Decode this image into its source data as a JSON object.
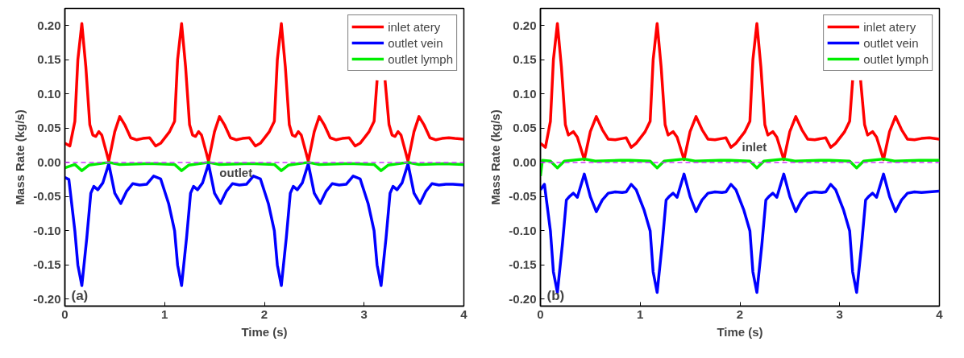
{
  "chart_data": [
    {
      "type": "line",
      "xlabel": "Time (s)",
      "ylabel": "Mass Rate (kg/s)",
      "xlim": [
        0,
        4
      ],
      "ylim": [
        -0.21,
        0.225
      ],
      "xticks": [
        0,
        1,
        2,
        3,
        4
      ],
      "yticks": [
        {
          "value": -0.2,
          "label": "-0.20"
        },
        {
          "value": -0.15,
          "label": "-0.15"
        },
        {
          "value": -0.1,
          "label": "-0.10"
        },
        {
          "value": -0.05,
          "label": "-0.05"
        },
        {
          "value": 0,
          "label": "0.00"
        },
        {
          "value": 0.05,
          "label": "0.05"
        },
        {
          "value": 0.1,
          "label": "0.10"
        },
        {
          "value": 0.15,
          "label": "0.15"
        },
        {
          "value": 0.2,
          "label": "0.20"
        }
      ],
      "legend": "top right",
      "line_style": "solid",
      "marker": "none",
      "grid": false,
      "ref_lines": [
        {
          "axis": "y",
          "value": 0,
          "color": "#cc33ff",
          "line_style": "dashed"
        }
      ],
      "annotations": [
        "(a)",
        {
          "text": "outlet",
          "x": 1.55,
          "y": -0.005
        }
      ],
      "series": [
        {
          "name": "inlet atery",
          "color": "#ff0000",
          "x": [
            0,
            0.05,
            0.1,
            0.13,
            0.17,
            0.21,
            0.25,
            0.28,
            0.31,
            0.34,
            0.37,
            0.44,
            0.5,
            0.55,
            0.6,
            0.66,
            0.72,
            0.78,
            0.85,
            0.91,
            0.96,
            1.05,
            1.1,
            1.13,
            1.17,
            1.21,
            1.25,
            1.28,
            1.31,
            1.34,
            1.37,
            1.44,
            1.5,
            1.55,
            1.6,
            1.66,
            1.72,
            1.78,
            1.85,
            1.91,
            1.96,
            2.05,
            2.1,
            2.13,
            2.17,
            2.21,
            2.25,
            2.28,
            2.31,
            2.34,
            2.37,
            2.44,
            2.5,
            2.55,
            2.6,
            2.66,
            2.72,
            2.78,
            2.85,
            2.91,
            2.96,
            3.05,
            3.1,
            3.13,
            3.17,
            3.21,
            3.25,
            3.28,
            3.31,
            3.34,
            3.37,
            3.44,
            3.5,
            3.55,
            3.6,
            3.66,
            3.72,
            3.78,
            3.85,
            3.91,
            4.0
          ],
          "values": [
            0.028,
            0.024,
            0.06,
            0.15,
            0.203,
            0.14,
            0.055,
            0.04,
            0.038,
            0.045,
            0.04,
            0.002,
            0.045,
            0.067,
            0.055,
            0.036,
            0.033,
            0.035,
            0.036,
            0.024,
            0.028,
            0.045,
            0.06,
            0.15,
            0.203,
            0.14,
            0.055,
            0.04,
            0.038,
            0.045,
            0.04,
            0.002,
            0.045,
            0.067,
            0.055,
            0.036,
            0.033,
            0.035,
            0.036,
            0.024,
            0.028,
            0.045,
            0.06,
            0.15,
            0.203,
            0.14,
            0.055,
            0.04,
            0.038,
            0.045,
            0.04,
            0.002,
            0.045,
            0.067,
            0.055,
            0.036,
            0.033,
            0.035,
            0.036,
            0.024,
            0.028,
            0.045,
            0.06,
            0.12,
            null,
            0.12,
            0.055,
            0.04,
            0.038,
            0.045,
            0.04,
            0.002,
            0.045,
            0.067,
            0.055,
            0.036,
            0.033,
            0.035,
            0.036,
            0.035,
            0.034
          ]
        },
        {
          "name": "outlet vein",
          "color": "#0000ff",
          "x": [
            0,
            0.04,
            0.1,
            0.13,
            0.17,
            0.22,
            0.26,
            0.29,
            0.33,
            0.38,
            0.44,
            0.5,
            0.56,
            0.62,
            0.68,
            0.75,
            0.82,
            0.89,
            0.96,
            1.04,
            1.1,
            1.13,
            1.17,
            1.22,
            1.26,
            1.29,
            1.33,
            1.38,
            1.44,
            1.5,
            1.56,
            1.62,
            1.68,
            1.75,
            1.82,
            1.89,
            1.96,
            2.04,
            2.1,
            2.13,
            2.17,
            2.22,
            2.26,
            2.29,
            2.33,
            2.38,
            2.44,
            2.5,
            2.56,
            2.62,
            2.68,
            2.75,
            2.82,
            2.89,
            2.96,
            3.04,
            3.1,
            3.13,
            3.17,
            3.22,
            3.26,
            3.29,
            3.33,
            3.38,
            3.44,
            3.5,
            3.56,
            3.62,
            3.68,
            3.75,
            3.82,
            3.89,
            4.0
          ],
          "values": [
            -0.022,
            -0.025,
            -0.1,
            -0.15,
            -0.18,
            -0.11,
            -0.045,
            -0.035,
            -0.04,
            -0.03,
            -0.002,
            -0.045,
            -0.06,
            -0.042,
            -0.031,
            -0.033,
            -0.032,
            -0.02,
            -0.024,
            -0.06,
            -0.1,
            -0.15,
            -0.18,
            -0.11,
            -0.045,
            -0.035,
            -0.04,
            -0.03,
            -0.002,
            -0.045,
            -0.06,
            -0.042,
            -0.031,
            -0.033,
            -0.032,
            -0.02,
            -0.024,
            -0.06,
            -0.1,
            -0.15,
            -0.18,
            -0.11,
            -0.045,
            -0.035,
            -0.04,
            -0.03,
            -0.002,
            -0.045,
            -0.06,
            -0.042,
            -0.031,
            -0.033,
            -0.032,
            -0.02,
            -0.024,
            -0.06,
            -0.1,
            -0.15,
            -0.18,
            -0.11,
            -0.045,
            -0.035,
            -0.04,
            -0.03,
            -0.002,
            -0.045,
            -0.06,
            -0.042,
            -0.031,
            -0.033,
            -0.032,
            -0.032,
            -0.033
          ]
        },
        {
          "name": "outlet lymph",
          "color": "#00ee00",
          "x": [
            0,
            0.1,
            0.17,
            0.24,
            0.44,
            0.55,
            0.8,
            0.9,
            1.1,
            1.17,
            1.24,
            1.44,
            1.55,
            1.8,
            1.9,
            2.1,
            2.17,
            2.24,
            2.44,
            2.55,
            2.8,
            2.9,
            3.1,
            3.17,
            3.24,
            3.44,
            3.55,
            3.8,
            4.0
          ],
          "values": [
            -0.008,
            -0.003,
            -0.012,
            -0.004,
            0.0,
            -0.003,
            -0.002,
            -0.002,
            -0.003,
            -0.012,
            -0.004,
            0.0,
            -0.003,
            -0.002,
            -0.002,
            -0.003,
            -0.012,
            -0.004,
            0.0,
            -0.003,
            -0.002,
            -0.002,
            -0.003,
            -0.012,
            -0.004,
            0.0,
            -0.003,
            -0.002,
            -0.003
          ]
        }
      ]
    },
    {
      "type": "line",
      "xlabel": "Time (s)",
      "ylabel": "Mass Rate (kg/s)",
      "xlim": [
        0,
        4
      ],
      "ylim": [
        -0.21,
        0.225
      ],
      "xticks": [
        0,
        1,
        2,
        3,
        4
      ],
      "yticks": [
        {
          "value": -0.2,
          "label": "-0.20"
        },
        {
          "value": -0.15,
          "label": "-0.15"
        },
        {
          "value": -0.1,
          "label": "-0.10"
        },
        {
          "value": -0.05,
          "label": "-0.05"
        },
        {
          "value": 0,
          "label": "0.00"
        },
        {
          "value": 0.05,
          "label": "0.05"
        },
        {
          "value": 0.1,
          "label": "0.10"
        },
        {
          "value": 0.15,
          "label": "0.15"
        },
        {
          "value": 0.2,
          "label": "0.20"
        }
      ],
      "legend": "top right",
      "line_style": "solid",
      "marker": "none",
      "grid": false,
      "ref_lines": [
        {
          "axis": "y",
          "value": 0,
          "color": "#cc33ff",
          "line_style": "dashed"
        }
      ],
      "annotations": [
        "(b)",
        "inlet"
      ],
      "series": [
        {
          "name": "inlet atery",
          "color": "#ff0000",
          "x": [
            0,
            0.05,
            0.1,
            0.13,
            0.17,
            0.21,
            0.25,
            0.28,
            0.33,
            0.37,
            0.44,
            0.5,
            0.56,
            0.62,
            0.68,
            0.75,
            0.82,
            0.86,
            0.91,
            0.96,
            1.05,
            1.1,
            1.13,
            1.17,
            1.21,
            1.25,
            1.28,
            1.33,
            1.37,
            1.44,
            1.5,
            1.56,
            1.62,
            1.68,
            1.75,
            1.82,
            1.86,
            1.91,
            1.96,
            2.05,
            2.1,
            2.13,
            2.17,
            2.21,
            2.25,
            2.28,
            2.33,
            2.37,
            2.44,
            2.5,
            2.56,
            2.62,
            2.68,
            2.75,
            2.82,
            2.86,
            2.91,
            2.96,
            3.05,
            3.1,
            3.13,
            3.17,
            3.21,
            3.25,
            3.28,
            3.33,
            3.37,
            3.44,
            3.5,
            3.56,
            3.62,
            3.68,
            3.75,
            3.82,
            3.9,
            4.0
          ],
          "values": [
            0.028,
            0.022,
            0.06,
            0.15,
            0.203,
            0.14,
            0.055,
            0.04,
            0.045,
            0.037,
            0.004,
            0.045,
            0.067,
            0.048,
            0.034,
            0.033,
            0.035,
            0.036,
            0.022,
            0.028,
            0.045,
            0.06,
            0.15,
            0.203,
            0.14,
            0.055,
            0.04,
            0.045,
            0.037,
            0.004,
            0.045,
            0.067,
            0.048,
            0.034,
            0.033,
            0.035,
            0.036,
            0.022,
            0.028,
            0.045,
            0.06,
            0.15,
            0.203,
            0.14,
            0.055,
            0.04,
            0.045,
            0.037,
            0.004,
            0.045,
            0.067,
            0.048,
            0.034,
            0.033,
            0.035,
            0.036,
            0.022,
            0.028,
            0.045,
            0.06,
            0.12,
            null,
            0.12,
            0.055,
            0.04,
            0.045,
            0.037,
            0.004,
            0.045,
            0.067,
            0.048,
            0.034,
            0.033,
            0.035,
            0.036,
            0.034
          ]
        },
        {
          "name": "outlet vein",
          "color": "#0000ff",
          "x": [
            0,
            0.04,
            0.1,
            0.13,
            0.17,
            0.22,
            0.26,
            0.29,
            0.33,
            0.37,
            0.44,
            0.5,
            0.56,
            0.62,
            0.68,
            0.75,
            0.82,
            0.86,
            0.91,
            0.96,
            1.04,
            1.1,
            1.13,
            1.17,
            1.22,
            1.26,
            1.29,
            1.33,
            1.37,
            1.44,
            1.5,
            1.56,
            1.62,
            1.68,
            1.75,
            1.82,
            1.86,
            1.91,
            1.96,
            2.04,
            2.1,
            2.13,
            2.17,
            2.22,
            2.26,
            2.29,
            2.33,
            2.37,
            2.44,
            2.5,
            2.56,
            2.62,
            2.68,
            2.75,
            2.82,
            2.86,
            2.91,
            2.96,
            3.04,
            3.1,
            3.13,
            3.17,
            3.22,
            3.26,
            3.29,
            3.33,
            3.37,
            3.44,
            3.5,
            3.56,
            3.62,
            3.68,
            3.75,
            3.82,
            3.9,
            4.0
          ],
          "values": [
            -0.04,
            -0.032,
            -0.1,
            -0.16,
            -0.19,
            -0.12,
            -0.055,
            -0.05,
            -0.045,
            -0.051,
            -0.017,
            -0.05,
            -0.072,
            -0.055,
            -0.045,
            -0.043,
            -0.044,
            -0.043,
            -0.032,
            -0.04,
            -0.07,
            -0.1,
            -0.16,
            -0.19,
            -0.12,
            -0.055,
            -0.05,
            -0.045,
            -0.051,
            -0.017,
            -0.05,
            -0.072,
            -0.055,
            -0.045,
            -0.043,
            -0.044,
            -0.043,
            -0.032,
            -0.04,
            -0.07,
            -0.1,
            -0.16,
            -0.19,
            -0.12,
            -0.055,
            -0.05,
            -0.045,
            -0.051,
            -0.017,
            -0.05,
            -0.072,
            -0.055,
            -0.045,
            -0.043,
            -0.044,
            -0.043,
            -0.032,
            -0.04,
            -0.07,
            -0.1,
            -0.16,
            -0.19,
            -0.12,
            -0.055,
            -0.05,
            -0.045,
            -0.051,
            -0.017,
            -0.05,
            -0.072,
            -0.055,
            -0.045,
            -0.043,
            -0.044,
            -0.043,
            -0.042
          ]
        },
        {
          "name": "outlet lymph",
          "color": "#00ee00",
          "x": [
            0,
            0.02,
            0.1,
            0.17,
            0.24,
            0.44,
            0.55,
            0.8,
            0.9,
            1.1,
            1.17,
            1.24,
            1.44,
            1.55,
            1.8,
            1.9,
            2.1,
            2.17,
            2.24,
            2.44,
            2.55,
            2.8,
            2.9,
            3.1,
            3.17,
            3.24,
            3.44,
            3.55,
            3.8,
            4.0
          ],
          "values": [
            -0.02,
            0.003,
            0.002,
            -0.008,
            0.002,
            0.005,
            0.002,
            0.003,
            0.003,
            0.002,
            -0.008,
            0.002,
            0.005,
            0.002,
            0.003,
            0.003,
            0.002,
            -0.008,
            0.002,
            0.005,
            0.002,
            0.003,
            0.003,
            0.002,
            -0.008,
            0.002,
            0.005,
            0.002,
            0.003,
            0.003
          ]
        }
      ]
    }
  ]
}
